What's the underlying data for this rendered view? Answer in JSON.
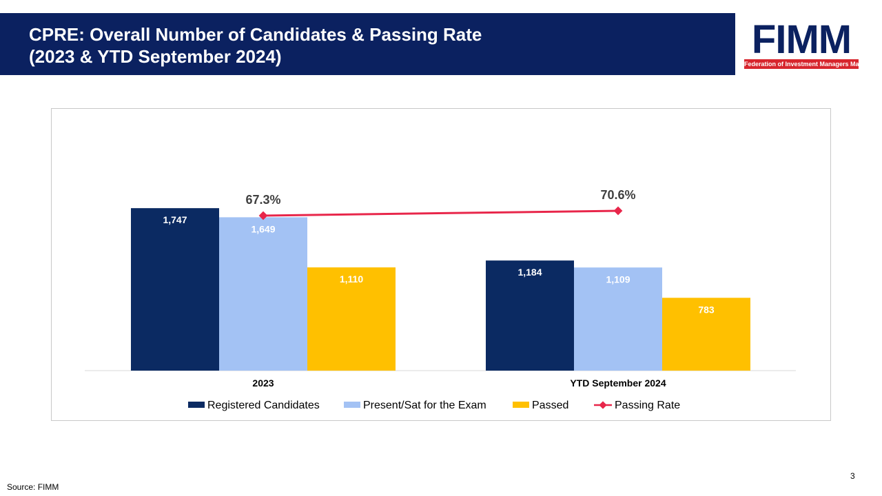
{
  "header": {
    "title_line1": "CPRE: Overall Number of Candidates & Passing Rate",
    "title_line2": "(2023 & YTD September 2024)"
  },
  "logo": {
    "word": "FiMM",
    "subtitle": "Federation of Investment Managers Malaysia"
  },
  "footer": {
    "source": "Source: FIMM",
    "page_number": "3"
  },
  "colors": {
    "title_bg": "#0b2160",
    "registered": "#0b2a62",
    "present": "#a3c2f4",
    "passed": "#ffc000",
    "passing_rate": "#e8264a",
    "logo_red": "#d7262e"
  },
  "chart_data": {
    "type": "bar",
    "categories": [
      "2023",
      "YTD September 2024"
    ],
    "series": [
      {
        "name": "Registered Candidates",
        "type": "bar",
        "values": [
          1747,
          1184
        ],
        "labels": [
          "1,747",
          "1,184"
        ],
        "color": "#0b2a62"
      },
      {
        "name": "Present/Sat for the Exam",
        "type": "bar",
        "values": [
          1649,
          1109
        ],
        "labels": [
          "1,649",
          "1,109"
        ],
        "color": "#a3c2f4"
      },
      {
        "name": "Passed",
        "type": "bar",
        "values": [
          1110,
          783
        ],
        "labels": [
          "1,110",
          "783"
        ],
        "color": "#ffc000"
      },
      {
        "name": "Passing Rate",
        "type": "line",
        "values": [
          67.3,
          70.6
        ],
        "labels": [
          "67.3%",
          "70.6%"
        ],
        "color": "#e8264a"
      }
    ],
    "title": "",
    "xlabel": "",
    "ylabel": "",
    "ylim": [
      0,
      2000
    ],
    "y2lim": [
      0,
      100
    ],
    "grid": false,
    "legend_position": "bottom"
  }
}
